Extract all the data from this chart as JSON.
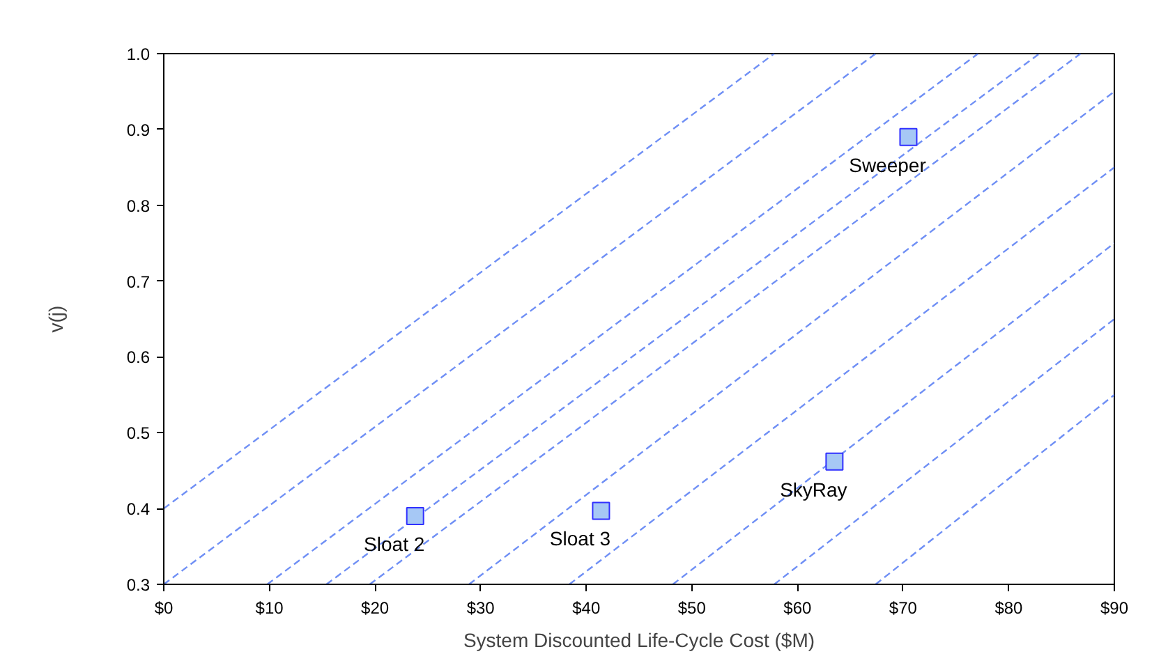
{
  "chart_data": {
    "type": "scatter",
    "xlabel": "System Discounted Life-Cycle Cost ($M)",
    "ylabel": "v(j)",
    "xlim": [
      0,
      90
    ],
    "ylim": [
      0.3,
      1.0
    ],
    "xticks": [
      {
        "value": 0,
        "label": "$0"
      },
      {
        "value": 10,
        "label": "$10"
      },
      {
        "value": 20,
        "label": "$20"
      },
      {
        "value": 30,
        "label": "$30"
      },
      {
        "value": 40,
        "label": "$40"
      },
      {
        "value": 50,
        "label": "$50"
      },
      {
        "value": 60,
        "label": "$60"
      },
      {
        "value": 70,
        "label": "$70"
      },
      {
        "value": 80,
        "label": "$80"
      },
      {
        "value": 90,
        "label": "$90"
      }
    ],
    "yticks": [
      0.3,
      0.4,
      0.5,
      0.6,
      0.7,
      0.8,
      0.9,
      {
        "value": 1.0,
        "label": "1.0"
      }
    ],
    "grid": false,
    "line_style": "dashed",
    "series": [
      {
        "marker": "square",
        "color": "#a6c8f5",
        "x": [
          23.8,
          41.4,
          63.5,
          70.5
        ],
        "values": [
          0.39,
          0.397,
          0.462,
          0.89
        ]
      },
      {
        "type": "line",
        "color": "#6f8ff5",
        "x": [
          0,
          57.8
        ],
        "values": [
          0.4,
          1.0
        ]
      },
      {
        "type": "line",
        "color": "#6f8ff5",
        "x": [
          0,
          67.4
        ],
        "values": [
          0.3,
          1.0
        ]
      },
      {
        "type": "line",
        "color": "#6f8ff5",
        "x": [
          9.8,
          77.1
        ],
        "values": [
          0.3,
          1.0
        ]
      },
      {
        "type": "line",
        "color": "#6f8ff5",
        "x": [
          15.4,
          82.9
        ],
        "values": [
          0.3,
          1.0
        ]
      },
      {
        "type": "line",
        "color": "#6f8ff5",
        "x": [
          19.5,
          86.8
        ],
        "values": [
          0.3,
          1.0
        ]
      },
      {
        "type": "line",
        "color": "#6f8ff5",
        "x": [
          28.9,
          90
        ],
        "values": [
          0.3,
          0.95
        ]
      },
      {
        "type": "line",
        "color": "#6f8ff5",
        "x": [
          38.4,
          90
        ],
        "values": [
          0.3,
          0.85
        ]
      },
      {
        "type": "line",
        "color": "#6f8ff5",
        "x": [
          48.2,
          90
        ],
        "values": [
          0.3,
          0.75
        ]
      },
      {
        "type": "line",
        "color": "#6f8ff5",
        "x": [
          57.8,
          90
        ],
        "values": [
          0.3,
          0.65
        ]
      },
      {
        "type": "line",
        "color": "#6f8ff5",
        "x": [
          67.4,
          90
        ],
        "values": [
          0.3,
          0.55
        ]
      }
    ],
    "annotations": [
      {
        "text": "Sloat 2",
        "x": 23.8,
        "y": 0.39
      },
      {
        "text": "Sloat 3",
        "x": 41.4,
        "y": 0.397
      },
      {
        "text": "SkyRay",
        "x": 63.5,
        "y": 0.462
      },
      {
        "text": "Sweeper",
        "x": 70.5,
        "y": 0.89
      }
    ]
  }
}
